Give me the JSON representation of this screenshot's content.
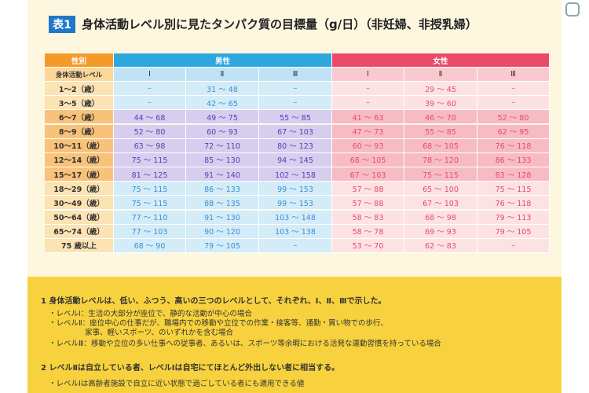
{
  "title": {
    "badge": "表1",
    "text": "身体活動レベル別に見たタンパク質の目標量（g/日）（非妊婦、非授乳婦）"
  },
  "table": {
    "header": {
      "sex_label": "性別",
      "male": "男性",
      "female": "女性",
      "level_label": "身体活動レベル",
      "levels": [
        "Ⅰ",
        "Ⅱ",
        "Ⅲ",
        "Ⅰ",
        "Ⅱ",
        "Ⅲ"
      ]
    },
    "rows": [
      {
        "age": "1～2（歳）",
        "cells": [
          "–",
          "31 ～ 48",
          "–",
          "–",
          "29 ～ 45",
          "–"
        ]
      },
      {
        "age": "3～5（歳）",
        "cells": [
          "–",
          "42 ～ 65",
          "–",
          "–",
          "39 ～ 60",
          "–"
        ]
      },
      {
        "age": "6～7（歳）",
        "cells": [
          "44 ～ 68",
          "49 ～ 75",
          "55 ～ 85",
          "41 ～ 63",
          "46 ～ 70",
          "52 ～ 80"
        ]
      },
      {
        "age": "8～9（歳）",
        "cells": [
          "52 ～ 80",
          "60 ～ 93",
          "67 ～ 103",
          "47 ～ 73",
          "55 ～ 85",
          "62 ～ 95"
        ]
      },
      {
        "age": "10～11（歳）",
        "cells": [
          "63 ～ 98",
          "72 ～ 110",
          "80 ～ 123",
          "60 ～ 93",
          "68 ～ 105",
          "76 ～ 118"
        ]
      },
      {
        "age": "12～14（歳）",
        "cells": [
          "75 ～ 115",
          "85 ～ 130",
          "94 ～ 145",
          "68 ～ 105",
          "78 ～ 120",
          "86 ～ 133"
        ]
      },
      {
        "age": "15～17（歳）",
        "cells": [
          "81 ～ 125",
          "91 ～ 140",
          "102 ～ 158",
          "67 ～ 103",
          "75 ～ 115",
          "83 ～ 128"
        ]
      },
      {
        "age": "18～29（歳）",
        "cells": [
          "75 ～ 115",
          "86 ～ 133",
          "99 ～ 153",
          "57 ～ 88",
          "65 ～ 100",
          "75 ～ 115"
        ]
      },
      {
        "age": "30～49（歳）",
        "cells": [
          "75 ～ 115",
          "88 ～ 135",
          "99 ～ 153",
          "57 ～ 88",
          "67 ～ 103",
          "76 ～ 118"
        ]
      },
      {
        "age": "50～64（歳）",
        "cells": [
          "77 ～ 110",
          "91 ～ 130",
          "103 ～ 148",
          "58 ～ 83",
          "68 ～ 98",
          "79 ～ 113"
        ]
      },
      {
        "age": "65～74（歳）",
        "cells": [
          "77 ～ 103",
          "90 ～ 120",
          "103 ～ 138",
          "58 ～ 78",
          "69 ～ 93",
          "79 ～ 105"
        ]
      },
      {
        "age": "75 歳以上",
        "cells": [
          "68 ～ 90",
          "79 ～ 105",
          "–",
          "53 ～ 70",
          "62 ～ 83",
          "–"
        ]
      }
    ]
  },
  "notes": [
    {
      "heading": "1 身体活動レベルは、低い、ふつう、高いの三つのレベルとして、それぞれ、Ⅰ、Ⅱ、Ⅲで示した。",
      "items": [
        "・レベルⅠ：生活の大部分が座位で、静的な活動が中心の場合",
        "・レベルⅡ：座位中心の仕事だが、職場内での移動や立位での作業・接客等、通勤・買い物での歩行、",
        "家事、軽いスポーツ、のいずれかを含む場合",
        "・レベルⅢ：移動や立位の多い仕事への従事者、あるいは、スポーツ等余暇における活発な運動習慣を持っている場合"
      ]
    },
    {
      "heading": "2 レベルⅡは自立している者、レベルⅠは自宅にてほとんど外出しない者に相当する。",
      "items": [
        "・レベルⅠは高齢者施設で自立に近い状態で過ごしている者にも適用できる値"
      ]
    }
  ]
}
